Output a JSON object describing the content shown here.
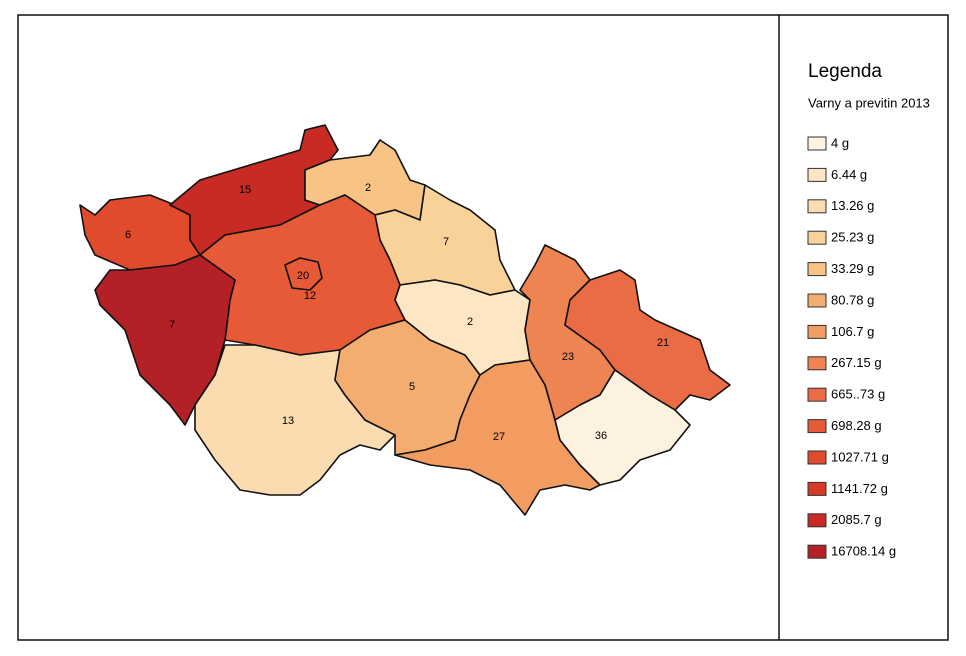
{
  "legend": {
    "title": "Legenda",
    "subtitle": "Varny a previtin 2013",
    "items": [
      {
        "label": "4 g",
        "color": "#fdf2e0"
      },
      {
        "label": "6.44 g",
        "color": "#fce6c4"
      },
      {
        "label": "13.26 g",
        "color": "#fbdcb0"
      },
      {
        "label": "25.23 g",
        "color": "#f9d29a"
      },
      {
        "label": "33.29 g",
        "color": "#f7c486"
      },
      {
        "label": "80.78 g",
        "color": "#f4ad70"
      },
      {
        "label": "106.7 g",
        "color": "#f29c62"
      },
      {
        "label": "267.15 g",
        "color": "#ee8452"
      },
      {
        "label": "665..73 g",
        "color": "#ea6c45"
      },
      {
        "label": "698.28 g",
        "color": "#e65a38"
      },
      {
        "label": "1027.71 g",
        "color": "#e04a2d"
      },
      {
        "label": "1141.72 g",
        "color": "#d63a27"
      },
      {
        "label": "2085.7 g",
        "color": "#c82a24"
      },
      {
        "label": "16708.14 g",
        "color": "#b32026"
      }
    ]
  },
  "regions": [
    {
      "label": "6",
      "color": "#e04a2d"
    },
    {
      "label": "15",
      "color": "#c82a24"
    },
    {
      "label": "2",
      "color": "#f7c486"
    },
    {
      "label": "7",
      "color": "#f9d29a"
    },
    {
      "label": "12",
      "color": "#e65a38"
    },
    {
      "label": "20",
      "color": "#e65a38"
    },
    {
      "label": "7",
      "color": "#b32026"
    },
    {
      "label": "13",
      "color": "#fbdcb0"
    },
    {
      "label": "5",
      "color": "#f4ad70"
    },
    {
      "label": "2",
      "color": "#fce6c4"
    },
    {
      "label": "23",
      "color": "#ee8452"
    },
    {
      "label": "21",
      "color": "#ea6c45"
    },
    {
      "label": "27",
      "color": "#f29c62"
    },
    {
      "label": "36",
      "color": "#fdf2e0"
    }
  ]
}
